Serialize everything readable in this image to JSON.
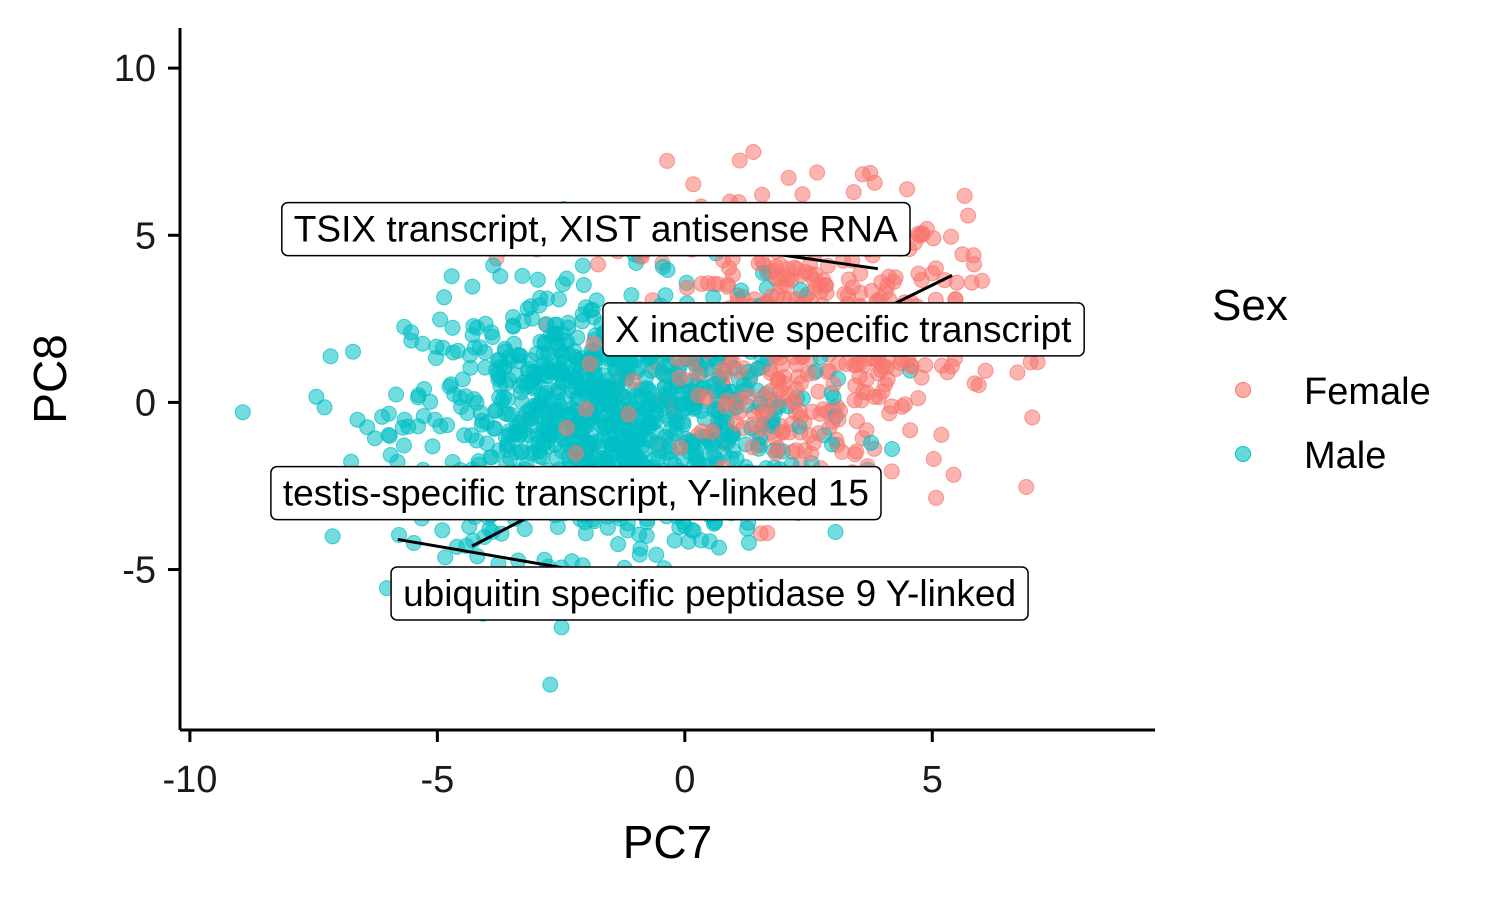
{
  "chart_data": {
    "type": "scatter",
    "xlabel": "PC7",
    "ylabel": "PC8",
    "xlim": [
      -10.2,
      9.5
    ],
    "ylim": [
      -9.8,
      11.2
    ],
    "x_ticks": [
      -10,
      -5,
      0,
      5
    ],
    "x_tick_labels": [
      "-10",
      "-5",
      "0",
      "5"
    ],
    "y_ticks": [
      -5,
      0,
      5,
      10
    ],
    "y_tick_labels": [
      "-5",
      "0",
      "5",
      "10"
    ],
    "grid": false,
    "legend": {
      "title": "Sex",
      "placement": "right"
    },
    "series": [
      {
        "name": "Female",
        "color": "#F8766D",
        "opacity": 0.55,
        "center": [
          2.2,
          1.8
        ],
        "spread": [
          2.3,
          2.9
        ],
        "n": 520
      },
      {
        "name": "Male",
        "color": "#00BFC4",
        "opacity": 0.55,
        "center": [
          -1.6,
          -0.6
        ],
        "spread": [
          2.6,
          2.6
        ],
        "n": 1050
      }
    ],
    "annotations": [
      {
        "label": "TSIX transcript, XIST antisense RNA",
        "point": [
          3.9,
          4.0
        ],
        "box_anchor": [
          -1.8,
          5.2
        ]
      },
      {
        "label": "X inactive specific transcript",
        "point": [
          5.4,
          3.8
        ],
        "box_anchor": [
          3.2,
          2.2
        ]
      },
      {
        "label": "testis-specific transcript, Y-linked 15",
        "point": [
          -4.3,
          -4.3
        ],
        "box_anchor": [
          -2.2,
          -2.7
        ]
      },
      {
        "label": "ubiquitin specific peptidase 9 Y-linked",
        "point": [
          -5.8,
          -4.1
        ],
        "box_anchor": [
          0.5,
          -5.7
        ]
      }
    ]
  }
}
